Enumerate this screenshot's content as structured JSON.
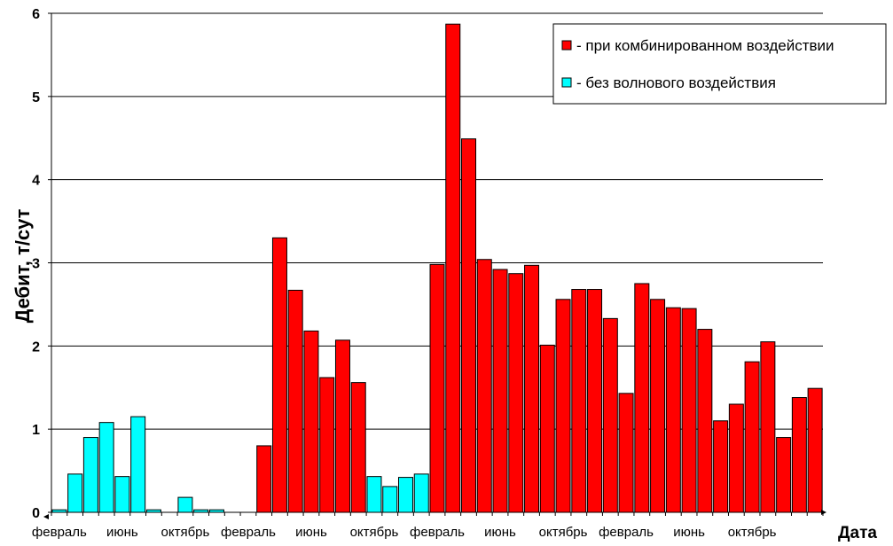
{
  "chart_data": {
    "type": "bar",
    "ylabel": "Дебит, т/сут",
    "xlabel": "Дата",
    "ylim": [
      0,
      6
    ],
    "yticks": [
      "0",
      "1",
      "2",
      "3",
      "4",
      "5",
      "6"
    ],
    "grid": true,
    "legend_position": "top-right",
    "x_tick_labels": [
      "февраль",
      "июнь",
      "октябрь",
      "февраль",
      "июнь",
      "октябрь",
      "февраль",
      "июнь",
      "октябрь",
      "февраль",
      "июнь",
      "октябрь"
    ],
    "series": [
      {
        "name": "- при комбинированном воздействии",
        "color": "#ff0000",
        "values": [
          null,
          null,
          null,
          null,
          null,
          null,
          null,
          null,
          null,
          null,
          null,
          null,
          null,
          0.8,
          3.3,
          2.67,
          2.18,
          1.62,
          2.07,
          1.56,
          null,
          null,
          null,
          null,
          2.98,
          5.87,
          4.49,
          3.04,
          2.92,
          2.87,
          2.97,
          2.01,
          2.56,
          2.68,
          2.68,
          2.33,
          1.43,
          2.75,
          2.56,
          2.46,
          2.45,
          2.2,
          1.1,
          1.3,
          1.81,
          2.05,
          0.9,
          1.38,
          1.49
        ]
      },
      {
        "name": "- без волнового воздействия",
        "color": "#00ffff",
        "values": [
          0.03,
          0.46,
          0.9,
          1.08,
          0.43,
          1.15,
          0.03,
          null,
          0.18,
          0.03,
          0.03,
          null,
          null,
          null,
          null,
          null,
          null,
          null,
          null,
          null,
          0.43,
          0.31,
          0.42,
          0.46,
          null,
          null,
          null,
          null,
          null,
          null,
          null,
          null,
          null,
          null,
          null,
          null,
          null,
          null,
          null,
          null,
          null,
          null,
          null,
          null,
          null,
          null,
          null,
          null,
          null
        ]
      }
    ]
  }
}
